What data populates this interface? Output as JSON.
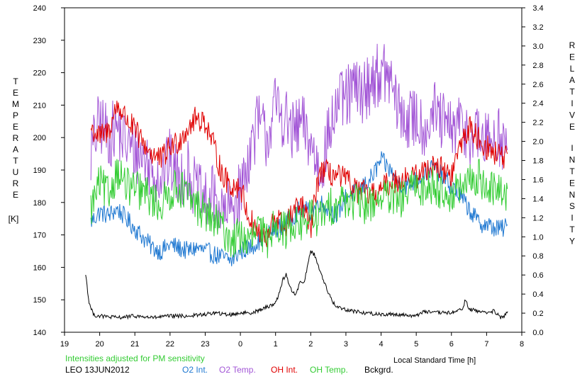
{
  "chart_data": {
    "type": "line",
    "title": "",
    "xlabel": "Local Standard Time [h]",
    "ylabel_left_letters": [
      "T",
      "E",
      "M",
      "P",
      "E",
      "R",
      "A",
      "T",
      "U",
      "R",
      "E"
    ],
    "ylabel_left_unit": "[K]",
    "ylabel_right_words": [
      [
        "R",
        "E",
        "L",
        "A",
        "T",
        "I",
        "V",
        "E"
      ],
      [
        "I",
        "N",
        "T",
        "E",
        "N",
        "S",
        "I",
        "T",
        "Y"
      ]
    ],
    "x_ticks": [
      "19",
      "20",
      "21",
      "22",
      "23",
      "0",
      "1",
      "2",
      "3",
      "4",
      "5",
      "6",
      "7",
      "8"
    ],
    "y_left_ticks": [
      "140",
      "150",
      "160",
      "170",
      "180",
      "190",
      "200",
      "210",
      "220",
      "230",
      "240"
    ],
    "y_right_ticks": [
      "0.0",
      "0.2",
      "0.4",
      "0.6",
      "0.8",
      "1.0",
      "1.2",
      "1.4",
      "1.6",
      "1.8",
      "2.0",
      "2.2",
      "2.4",
      "2.6",
      "2.8",
      "3.0",
      "3.2",
      "3.4"
    ],
    "xlim": [
      19,
      32
    ],
    "ylim_left": [
      140,
      240
    ],
    "ylim_right": [
      0,
      3.4
    ],
    "grid": false,
    "note": "Intensities adjusted for PM sensitivity",
    "station_date": "LEO 13JUN2012",
    "series": [
      {
        "name": "O2 Int.",
        "color": "#1f78d1",
        "axis": "left",
        "x": [
          19.75,
          20.0,
          20.25,
          20.5,
          20.75,
          21.0,
          21.25,
          21.5,
          21.75,
          22.0,
          22.25,
          22.5,
          22.75,
          23.0,
          23.25,
          23.5,
          23.75,
          24.0,
          24.25,
          24.5,
          24.75,
          25.0,
          25.25,
          25.5,
          25.75,
          26.0,
          26.25,
          26.5,
          26.75,
          27.0,
          27.25,
          27.5,
          27.75,
          28.0,
          28.25,
          28.5,
          28.75,
          29.0,
          29.25,
          29.5,
          29.75,
          30.0,
          30.25,
          30.5,
          30.75,
          31.0,
          31.25,
          31.5,
          31.6
        ],
        "values": [
          174,
          177,
          176,
          178,
          175,
          172,
          169,
          166,
          165,
          167,
          166,
          165,
          166,
          165,
          164,
          163,
          162,
          165,
          166,
          168,
          170,
          172,
          173,
          176,
          178,
          177,
          180,
          178,
          176,
          182,
          183,
          185,
          188,
          193,
          190,
          186,
          185,
          187,
          189,
          191,
          188,
          185,
          182,
          178,
          174,
          173,
          172,
          172,
          173
        ]
      },
      {
        "name": "O2 Temp.",
        "color": "#a255d6",
        "axis": "left",
        "x": [
          19.75,
          20.0,
          20.25,
          20.5,
          20.75,
          21.0,
          21.25,
          21.5,
          21.75,
          22.0,
          22.25,
          22.5,
          22.75,
          23.0,
          23.25,
          23.5,
          23.75,
          24.0,
          24.25,
          24.5,
          24.75,
          25.0,
          25.25,
          25.5,
          25.75,
          26.0,
          26.25,
          26.5,
          26.75,
          27.0,
          27.25,
          27.5,
          27.75,
          28.0,
          28.25,
          28.5,
          28.75,
          29.0,
          29.25,
          29.5,
          29.75,
          30.0,
          30.25,
          30.5,
          30.75,
          31.0,
          31.25,
          31.5,
          31.6
        ],
        "values": [
          195,
          205,
          200,
          203,
          198,
          196,
          194,
          190,
          188,
          193,
          187,
          190,
          183,
          180,
          182,
          176,
          178,
          183,
          195,
          205,
          200,
          210,
          206,
          201,
          204,
          198,
          190,
          200,
          210,
          212,
          215,
          214,
          218,
          220,
          218,
          208,
          205,
          206,
          203,
          208,
          204,
          202,
          204,
          201,
          200,
          198,
          202,
          198,
          194
        ]
      },
      {
        "name": "OH Int.",
        "color": "#e00000",
        "axis": "left",
        "x": [
          19.75,
          20.0,
          20.25,
          20.5,
          20.75,
          21.0,
          21.25,
          21.5,
          21.75,
          22.0,
          22.25,
          22.5,
          22.75,
          23.0,
          23.25,
          23.5,
          23.75,
          24.0,
          24.25,
          24.5,
          24.75,
          25.0,
          25.25,
          25.5,
          25.75,
          26.0,
          26.25,
          26.5,
          26.75,
          27.0,
          27.25,
          27.5,
          27.75,
          28.0,
          28.25,
          28.5,
          28.75,
          29.0,
          29.25,
          29.5,
          29.75,
          30.0,
          30.25,
          30.5,
          30.75,
          31.0,
          31.25,
          31.5,
          31.6
        ],
        "values": [
          203,
          200,
          202,
          210,
          206,
          202,
          198,
          195,
          193,
          197,
          199,
          203,
          206,
          205,
          197,
          188,
          185,
          185,
          175,
          171,
          168,
          176,
          172,
          177,
          179,
          172,
          190,
          189,
          188,
          187,
          184,
          183,
          182,
          184,
          186,
          187,
          188,
          188,
          190,
          192,
          190,
          188,
          198,
          203,
          200,
          197,
          195,
          194,
          194
        ]
      },
      {
        "name": "OH Temp.",
        "color": "#33cc33",
        "axis": "left",
        "x": [
          19.75,
          20.0,
          20.25,
          20.5,
          20.75,
          21.0,
          21.25,
          21.5,
          21.75,
          22.0,
          22.25,
          22.5,
          22.75,
          23.0,
          23.25,
          23.5,
          23.75,
          24.0,
          24.25,
          24.5,
          24.75,
          25.0,
          25.25,
          25.5,
          25.75,
          26.0,
          26.25,
          26.5,
          26.75,
          27.0,
          27.25,
          27.5,
          27.75,
          28.0,
          28.25,
          28.5,
          28.75,
          29.0,
          29.25,
          29.5,
          29.75,
          30.0,
          30.25,
          30.5,
          30.75,
          31.0,
          31.25,
          31.5,
          31.6
        ],
        "values": [
          178,
          186,
          182,
          190,
          185,
          184,
          183,
          181,
          179,
          183,
          185,
          182,
          179,
          177,
          174,
          172,
          168,
          170,
          167,
          172,
          168,
          175,
          171,
          174,
          173,
          176,
          175,
          178,
          180,
          181,
          180,
          179,
          180,
          182,
          181,
          180,
          183,
          185,
          184,
          186,
          183,
          182,
          184,
          186,
          188,
          185,
          183,
          184,
          182
        ]
      },
      {
        "name": "Bckgrd.",
        "color": "#000000",
        "axis": "left",
        "x": [
          19.6,
          19.7,
          19.8,
          19.9,
          20.0,
          20.5,
          21.0,
          21.5,
          22.0,
          22.5,
          23.0,
          23.3,
          23.5,
          23.8,
          24.0,
          24.3,
          24.6,
          24.8,
          25.0,
          25.1,
          25.2,
          25.3,
          25.4,
          25.5,
          25.6,
          25.7,
          25.8,
          25.9,
          26.0,
          26.1,
          26.2,
          26.3,
          26.5,
          26.7,
          27.0,
          27.5,
          28.0,
          28.5,
          29.0,
          29.2,
          29.5,
          30.0,
          30.3,
          30.4,
          30.5,
          30.8,
          31.0,
          31.2,
          31.4,
          31.5,
          31.6
        ],
        "values": [
          158,
          149,
          146,
          145,
          145,
          144.5,
          145,
          144.5,
          145,
          145,
          145.5,
          146,
          145.5,
          145.5,
          146,
          146,
          147,
          148,
          149,
          152,
          156,
          158,
          154,
          152,
          152,
          156,
          155,
          160,
          165,
          164,
          161,
          158,
          152,
          148,
          147,
          146,
          145.5,
          145.5,
          145,
          146.5,
          146,
          146,
          147,
          150,
          147,
          146.5,
          146,
          146.5,
          144.5,
          145,
          146.5
        ]
      }
    ]
  }
}
